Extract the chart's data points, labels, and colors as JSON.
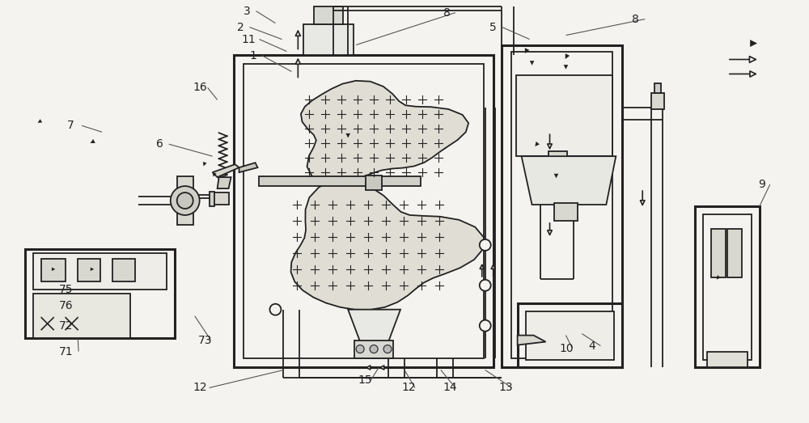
{
  "bg_color": "#f5f3ef",
  "line_color": "#222222",
  "lw": 1.3,
  "tlw": 2.2,
  "fs": 10,
  "figsize": [
    10.0,
    5.23
  ],
  "dpi": 100
}
